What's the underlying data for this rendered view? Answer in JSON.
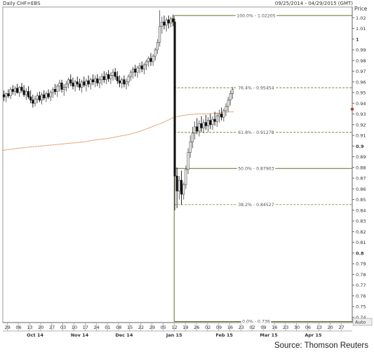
{
  "header": {
    "title": "Daily CHF=EBS",
    "date_range": "09/25/2014 - 04/29/2015 (GMT)"
  },
  "source": "Source: Thomson Reuters",
  "axis": {
    "y_title": "Price",
    "auto_label": "Auto",
    "y_ticks": [
      0.74,
      0.75,
      0.76,
      0.77,
      0.78,
      0.79,
      0.8,
      0.81,
      0.82,
      0.83,
      0.84,
      0.85,
      0.86,
      0.87,
      0.88,
      0.89,
      0.9,
      0.91,
      0.92,
      0.93,
      0.94,
      0.95,
      0.96,
      0.97,
      0.98,
      0.99,
      1,
      1.01,
      1.02
    ],
    "y_tick_labels": [
      "0.74",
      "0.75",
      "0.76",
      "0.77",
      "0.78",
      "0.79",
      "0.8",
      "0.81",
      "0.82",
      "0.83",
      "0.84",
      "0.85",
      "0.86",
      "0.87",
      "0.88",
      "0.89",
      "0.9",
      "0.91",
      "0.92",
      "0.93",
      "0.94",
      "0.95",
      "0.96",
      "0.97",
      "0.98",
      "0.99",
      "1",
      "1.01",
      "1.02"
    ],
    "x_day_labels": [
      "29",
      "06",
      "13",
      "20",
      "27",
      "03",
      "10",
      "17",
      "24",
      "01",
      "08",
      "15",
      "22",
      "29",
      "05",
      "12",
      "19",
      "26",
      "02",
      "09",
      "16",
      "23",
      "02",
      "09",
      "16",
      "23",
      "30",
      "06",
      "13",
      "20",
      "27"
    ],
    "x_month_labels": [
      {
        "label": "Oct 14",
        "at": 2.5
      },
      {
        "label": "Nov 14",
        "at": 6.5
      },
      {
        "label": "Dec 14",
        "at": 10.5
      },
      {
        "label": "Jan 15",
        "at": 15
      },
      {
        "label": "Feb 15",
        "at": 19.5
      },
      {
        "label": "Mar 15",
        "at": 23.5
      },
      {
        "label": "Apr 15",
        "at": 27.5
      }
    ]
  },
  "chart_data": {
    "type": "candlestick",
    "title": "Daily CHF=EBS",
    "ylabel": "Price",
    "ylim": [
      0.735,
      1.03
    ],
    "x_unit": "week index (0 = 29 Sep 2014)",
    "xlim": [
      -0.4,
      31
    ],
    "current_price": 0.9345,
    "candles": [
      {
        "x": -0.3,
        "o": 0.948,
        "h": 0.952,
        "l": 0.942,
        "c": 0.946
      },
      {
        "x": -0.1,
        "o": 0.946,
        "h": 0.95,
        "l": 0.941,
        "c": 0.949
      },
      {
        "x": 0.1,
        "o": 0.949,
        "h": 0.953,
        "l": 0.945,
        "c": 0.947
      },
      {
        "x": 0.3,
        "o": 0.947,
        "h": 0.955,
        "l": 0.944,
        "c": 0.953
      },
      {
        "x": 0.5,
        "o": 0.953,
        "h": 0.957,
        "l": 0.948,
        "c": 0.951
      },
      {
        "x": 0.7,
        "o": 0.951,
        "h": 0.956,
        "l": 0.947,
        "c": 0.954
      },
      {
        "x": 0.9,
        "o": 0.954,
        "h": 0.958,
        "l": 0.949,
        "c": 0.95
      },
      {
        "x": 1.1,
        "o": 0.95,
        "h": 0.956,
        "l": 0.946,
        "c": 0.955
      },
      {
        "x": 1.3,
        "o": 0.955,
        "h": 0.959,
        "l": 0.95,
        "c": 0.952
      },
      {
        "x": 1.5,
        "o": 0.952,
        "h": 0.957,
        "l": 0.946,
        "c": 0.948
      },
      {
        "x": 1.7,
        "o": 0.948,
        "h": 0.954,
        "l": 0.943,
        "c": 0.951
      },
      {
        "x": 1.9,
        "o": 0.951,
        "h": 0.956,
        "l": 0.944,
        "c": 0.946
      },
      {
        "x": 2.1,
        "o": 0.946,
        "h": 0.952,
        "l": 0.94,
        "c": 0.943
      },
      {
        "x": 2.3,
        "o": 0.943,
        "h": 0.948,
        "l": 0.936,
        "c": 0.94
      },
      {
        "x": 2.5,
        "o": 0.94,
        "h": 0.947,
        "l": 0.937,
        "c": 0.944
      },
      {
        "x": 2.7,
        "o": 0.944,
        "h": 0.95,
        "l": 0.94,
        "c": 0.947
      },
      {
        "x": 2.9,
        "o": 0.947,
        "h": 0.951,
        "l": 0.941,
        "c": 0.943
      },
      {
        "x": 3.1,
        "o": 0.943,
        "h": 0.95,
        "l": 0.939,
        "c": 0.948
      },
      {
        "x": 3.3,
        "o": 0.948,
        "h": 0.952,
        "l": 0.943,
        "c": 0.945
      },
      {
        "x": 3.5,
        "o": 0.945,
        "h": 0.951,
        "l": 0.941,
        "c": 0.949
      },
      {
        "x": 3.7,
        "o": 0.949,
        "h": 0.953,
        "l": 0.944,
        "c": 0.946
      },
      {
        "x": 3.9,
        "o": 0.946,
        "h": 0.952,
        "l": 0.942,
        "c": 0.95
      },
      {
        "x": 4.1,
        "o": 0.95,
        "h": 0.955,
        "l": 0.945,
        "c": 0.953
      },
      {
        "x": 4.3,
        "o": 0.953,
        "h": 0.958,
        "l": 0.948,
        "c": 0.951
      },
      {
        "x": 4.5,
        "o": 0.951,
        "h": 0.958,
        "l": 0.946,
        "c": 0.956
      },
      {
        "x": 4.7,
        "o": 0.956,
        "h": 0.962,
        "l": 0.951,
        "c": 0.959
      },
      {
        "x": 4.9,
        "o": 0.959,
        "h": 0.962,
        "l": 0.95,
        "c": 0.953
      },
      {
        "x": 5.1,
        "o": 0.953,
        "h": 0.958,
        "l": 0.947,
        "c": 0.955
      },
      {
        "x": 5.3,
        "o": 0.955,
        "h": 0.961,
        "l": 0.951,
        "c": 0.958
      },
      {
        "x": 5.5,
        "o": 0.958,
        "h": 0.964,
        "l": 0.954,
        "c": 0.962
      },
      {
        "x": 5.7,
        "o": 0.962,
        "h": 0.967,
        "l": 0.956,
        "c": 0.959
      },
      {
        "x": 5.9,
        "o": 0.959,
        "h": 0.964,
        "l": 0.953,
        "c": 0.956
      },
      {
        "x": 6.1,
        "o": 0.956,
        "h": 0.962,
        "l": 0.951,
        "c": 0.96
      },
      {
        "x": 6.3,
        "o": 0.96,
        "h": 0.965,
        "l": 0.955,
        "c": 0.958
      },
      {
        "x": 6.5,
        "o": 0.958,
        "h": 0.963,
        "l": 0.952,
        "c": 0.955
      },
      {
        "x": 6.7,
        "o": 0.955,
        "h": 0.962,
        "l": 0.95,
        "c": 0.96
      },
      {
        "x": 6.9,
        "o": 0.96,
        "h": 0.965,
        "l": 0.955,
        "c": 0.957
      },
      {
        "x": 7.1,
        "o": 0.957,
        "h": 0.963,
        "l": 0.951,
        "c": 0.961
      },
      {
        "x": 7.3,
        "o": 0.961,
        "h": 0.966,
        "l": 0.955,
        "c": 0.958
      },
      {
        "x": 7.5,
        "o": 0.958,
        "h": 0.964,
        "l": 0.953,
        "c": 0.962
      },
      {
        "x": 7.7,
        "o": 0.962,
        "h": 0.967,
        "l": 0.957,
        "c": 0.96
      },
      {
        "x": 7.9,
        "o": 0.96,
        "h": 0.966,
        "l": 0.955,
        "c": 0.963
      },
      {
        "x": 8.1,
        "o": 0.963,
        "h": 0.967,
        "l": 0.956,
        "c": 0.959
      },
      {
        "x": 8.3,
        "o": 0.959,
        "h": 0.965,
        "l": 0.954,
        "c": 0.962
      },
      {
        "x": 8.5,
        "o": 0.962,
        "h": 0.968,
        "l": 0.957,
        "c": 0.965
      },
      {
        "x": 8.7,
        "o": 0.965,
        "h": 0.97,
        "l": 0.959,
        "c": 0.962
      },
      {
        "x": 8.9,
        "o": 0.962,
        "h": 0.969,
        "l": 0.958,
        "c": 0.967
      },
      {
        "x": 9.1,
        "o": 0.967,
        "h": 0.971,
        "l": 0.96,
        "c": 0.963
      },
      {
        "x": 9.3,
        "o": 0.963,
        "h": 0.969,
        "l": 0.958,
        "c": 0.966
      },
      {
        "x": 9.5,
        "o": 0.966,
        "h": 0.972,
        "l": 0.961,
        "c": 0.969
      },
      {
        "x": 9.7,
        "o": 0.969,
        "h": 0.973,
        "l": 0.962,
        "c": 0.965
      },
      {
        "x": 9.9,
        "o": 0.965,
        "h": 0.97,
        "l": 0.958,
        "c": 0.961
      },
      {
        "x": 10.1,
        "o": 0.961,
        "h": 0.966,
        "l": 0.955,
        "c": 0.959
      },
      {
        "x": 10.3,
        "o": 0.959,
        "h": 0.964,
        "l": 0.954,
        "c": 0.962
      },
      {
        "x": 10.5,
        "o": 0.962,
        "h": 0.966,
        "l": 0.955,
        "c": 0.958
      },
      {
        "x": 10.7,
        "o": 0.958,
        "h": 0.963,
        "l": 0.953,
        "c": 0.96
      },
      {
        "x": 10.9,
        "o": 0.96,
        "h": 0.967,
        "l": 0.956,
        "c": 0.965
      },
      {
        "x": 11.1,
        "o": 0.965,
        "h": 0.971,
        "l": 0.961,
        "c": 0.969
      },
      {
        "x": 11.3,
        "o": 0.969,
        "h": 0.974,
        "l": 0.963,
        "c": 0.972
      },
      {
        "x": 11.5,
        "o": 0.972,
        "h": 0.976,
        "l": 0.965,
        "c": 0.969
      },
      {
        "x": 11.7,
        "o": 0.969,
        "h": 0.975,
        "l": 0.964,
        "c": 0.973
      },
      {
        "x": 11.9,
        "o": 0.973,
        "h": 0.978,
        "l": 0.968,
        "c": 0.975
      },
      {
        "x": 12.1,
        "o": 0.975,
        "h": 0.979,
        "l": 0.969,
        "c": 0.972
      },
      {
        "x": 12.3,
        "o": 0.972,
        "h": 0.978,
        "l": 0.967,
        "c": 0.976
      },
      {
        "x": 12.5,
        "o": 0.976,
        "h": 0.981,
        "l": 0.971,
        "c": 0.979
      },
      {
        "x": 12.7,
        "o": 0.979,
        "h": 0.984,
        "l": 0.974,
        "c": 0.982
      },
      {
        "x": 12.9,
        "o": 0.982,
        "h": 0.987,
        "l": 0.975,
        "c": 0.979
      },
      {
        "x": 13.1,
        "o": 0.979,
        "h": 0.986,
        "l": 0.975,
        "c": 0.984
      },
      {
        "x": 13.3,
        "o": 0.984,
        "h": 0.992,
        "l": 0.98,
        "c": 0.99
      },
      {
        "x": 13.5,
        "o": 0.99,
        "h": 1.0,
        "l": 0.986,
        "c": 0.997
      },
      {
        "x": 13.7,
        "o": 0.997,
        "h": 1.027,
        "l": 0.993,
        "c": 1.012
      },
      {
        "x": 13.9,
        "o": 1.012,
        "h": 1.021,
        "l": 1.005,
        "c": 1.016
      },
      {
        "x": 14.1,
        "o": 1.016,
        "h": 1.022,
        "l": 1.009,
        "c": 1.013
      },
      {
        "x": 14.3,
        "o": 1.013,
        "h": 1.02,
        "l": 1.007,
        "c": 1.018
      },
      {
        "x": 14.5,
        "o": 1.018,
        "h": 1.022,
        "l": 1.01,
        "c": 1.015
      },
      {
        "x": 14.7,
        "o": 1.015,
        "h": 1.021,
        "l": 1.011,
        "c": 1.019
      },
      {
        "x": 14.9,
        "o": 1.019,
        "h": 1.023,
        "l": 1.012,
        "c": 1.016
      },
      {
        "x": 15.05,
        "o": 1.016,
        "h": 1.019,
        "l": 0.84,
        "c": 0.872
      },
      {
        "x": 15.25,
        "o": 0.872,
        "h": 0.88,
        "l": 0.842,
        "c": 0.858
      },
      {
        "x": 15.45,
        "o": 0.858,
        "h": 0.872,
        "l": 0.85,
        "c": 0.868
      },
      {
        "x": 15.65,
        "o": 0.868,
        "h": 0.877,
        "l": 0.845,
        "c": 0.855
      },
      {
        "x": 15.85,
        "o": 0.855,
        "h": 0.866,
        "l": 0.85,
        "c": 0.864
      },
      {
        "x": 16.05,
        "o": 0.864,
        "h": 0.882,
        "l": 0.86,
        "c": 0.878
      },
      {
        "x": 16.25,
        "o": 0.878,
        "h": 0.898,
        "l": 0.874,
        "c": 0.894
      },
      {
        "x": 16.45,
        "o": 0.894,
        "h": 0.91,
        "l": 0.889,
        "c": 0.904
      },
      {
        "x": 16.65,
        "o": 0.904,
        "h": 0.918,
        "l": 0.898,
        "c": 0.912
      },
      {
        "x": 16.85,
        "o": 0.912,
        "h": 0.923,
        "l": 0.906,
        "c": 0.918
      },
      {
        "x": 17.05,
        "o": 0.918,
        "h": 0.926,
        "l": 0.911,
        "c": 0.914
      },
      {
        "x": 17.25,
        "o": 0.914,
        "h": 0.924,
        "l": 0.909,
        "c": 0.921
      },
      {
        "x": 17.45,
        "o": 0.921,
        "h": 0.928,
        "l": 0.913,
        "c": 0.917
      },
      {
        "x": 17.65,
        "o": 0.917,
        "h": 0.925,
        "l": 0.912,
        "c": 0.922
      },
      {
        "x": 17.85,
        "o": 0.922,
        "h": 0.929,
        "l": 0.915,
        "c": 0.919
      },
      {
        "x": 18.05,
        "o": 0.919,
        "h": 0.927,
        "l": 0.913,
        "c": 0.924
      },
      {
        "x": 18.25,
        "o": 0.924,
        "h": 0.93,
        "l": 0.916,
        "c": 0.92
      },
      {
        "x": 18.45,
        "o": 0.92,
        "h": 0.928,
        "l": 0.915,
        "c": 0.925
      },
      {
        "x": 18.65,
        "o": 0.925,
        "h": 0.932,
        "l": 0.919,
        "c": 0.923
      },
      {
        "x": 18.85,
        "o": 0.923,
        "h": 0.931,
        "l": 0.918,
        "c": 0.928
      },
      {
        "x": 19.05,
        "o": 0.928,
        "h": 0.934,
        "l": 0.922,
        "c": 0.93
      },
      {
        "x": 19.25,
        "o": 0.93,
        "h": 0.936,
        "l": 0.924,
        "c": 0.927
      },
      {
        "x": 19.45,
        "o": 0.927,
        "h": 0.935,
        "l": 0.923,
        "c": 0.933
      },
      {
        "x": 19.65,
        "o": 0.933,
        "h": 0.94,
        "l": 0.928,
        "c": 0.937
      },
      {
        "x": 19.85,
        "o": 0.937,
        "h": 0.946,
        "l": 0.932,
        "c": 0.943
      },
      {
        "x": 20.05,
        "o": 0.943,
        "h": 0.952,
        "l": 0.938,
        "c": 0.949
      },
      {
        "x": 20.25,
        "o": 0.949,
        "h": 0.955,
        "l": 0.944,
        "c": 0.953
      }
    ],
    "moving_average": {
      "color": "#d2691e",
      "points": [
        [
          -0.4,
          0.896
        ],
        [
          1,
          0.898
        ],
        [
          2,
          0.899
        ],
        [
          3,
          0.9
        ],
        [
          4,
          0.901
        ],
        [
          5,
          0.902
        ],
        [
          6,
          0.903
        ],
        [
          7,
          0.904
        ],
        [
          8,
          0.906
        ],
        [
          9,
          0.907
        ],
        [
          10,
          0.909
        ],
        [
          11,
          0.911
        ],
        [
          12,
          0.914
        ],
        [
          13,
          0.918
        ],
        [
          14,
          0.922
        ],
        [
          15,
          0.927
        ],
        [
          15.5,
          0.928
        ],
        [
          16,
          0.929
        ],
        [
          17,
          0.93
        ],
        [
          18,
          0.93
        ],
        [
          19,
          0.931
        ],
        [
          20,
          0.932
        ],
        [
          20.3,
          0.932
        ]
      ]
    },
    "fibonacci": {
      "x_start": 15.0,
      "x_end": 31,
      "levels": [
        {
          "label": "100.0% - 1.02205",
          "value": 1.02205,
          "color": "#6b6b2a",
          "dashed": false
        },
        {
          "label": "76.4% - 0.95454",
          "value": 0.95454,
          "color": "#7a7a3a",
          "dashed": true
        },
        {
          "label": "61.8% - 0.91278",
          "value": 0.91278,
          "color": "#7a7a3a",
          "dashed": true
        },
        {
          "label": "50.0% - 0.87903",
          "value": 0.87903,
          "color": "#6b6b2a",
          "dashed": false
        },
        {
          "label": "38.2% - 0.84527",
          "value": 0.84527,
          "color": "#9a9a50",
          "dashed": true
        },
        {
          "label": "0.0% - 0.736",
          "value": 0.736,
          "color": "#6b6b2a",
          "dashed": false
        }
      ]
    },
    "colors": {
      "up": "#555555",
      "down": "#111111",
      "vertical_line": "#000000"
    }
  }
}
